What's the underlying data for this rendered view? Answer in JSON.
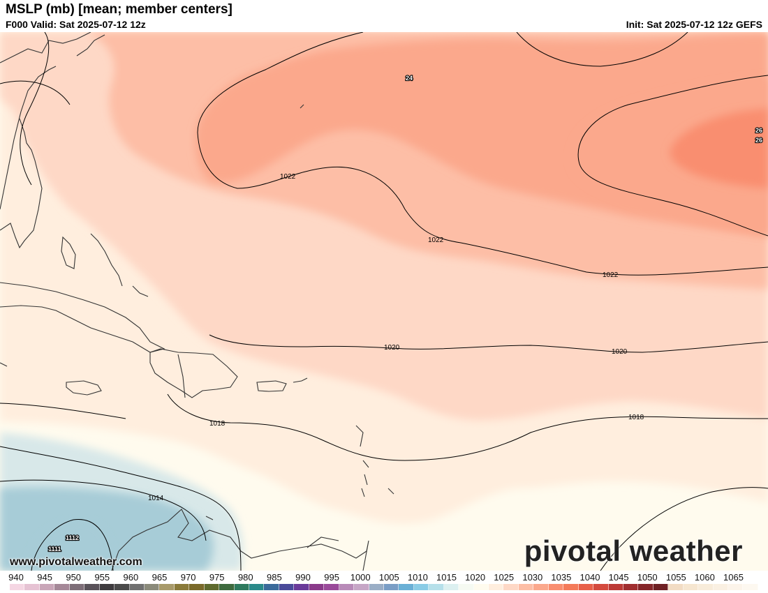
{
  "header": {
    "title": "MSLP (mb) [mean; member centers]",
    "valid": "F000 Valid: Sat 2025-07-12 12z",
    "init": "Init: Sat 2025-07-12 12z GEFS"
  },
  "map": {
    "contour_labels": [
      "1022",
      "1022",
      "1022",
      "1020",
      "1020",
      "1018",
      "1018",
      "1014"
    ],
    "center_labels": [
      "24",
      "26",
      "26",
      "1112",
      "1111"
    ],
    "colors": {
      "p1012": "#a7ccd7",
      "p1014": "#d8e8e9",
      "p1016": "#fffbee",
      "p1018": "#ffeede",
      "p1020": "#fed8c6",
      "p1022": "#fdbea6",
      "p1024": "#fba88c",
      "p1026": "#f98e70",
      "land_line": "#333333",
      "contour_line": "#000000"
    }
  },
  "watermark": {
    "website": "www.pivotalweather.com",
    "brand": "pivotal weather",
    "brand_icon": "gear-icon"
  },
  "scale": {
    "ticks": [
      "940",
      "945",
      "950",
      "955",
      "960",
      "965",
      "970",
      "975",
      "980",
      "985",
      "990",
      "995",
      "1000",
      "1005",
      "1010",
      "1015",
      "1020",
      "1025",
      "1030",
      "1035",
      "1040",
      "1045",
      "1050",
      "1055",
      "1060",
      "1065"
    ],
    "swatch_colors": [
      "#f5d6e3",
      "#e6c2d3",
      "#c9a6b8",
      "#a58898",
      "#7d6e78",
      "#595259",
      "#3e3b3e",
      "#4a4a4a",
      "#707070",
      "#8a8a7a",
      "#a89a6a",
      "#8a7a3a",
      "#7a6a2a",
      "#5e6a2e",
      "#3e6a3e",
      "#2e7a5e",
      "#2a8a8a",
      "#3a6a9a",
      "#4a4a9a",
      "#6a3a9a",
      "#8a3a8a",
      "#9a4a9a",
      "#b88ab8",
      "#c6a6c6",
      "#9aaec6",
      "#7a9ec6",
      "#6ab0d6",
      "#8acce6",
      "#b6e0ea",
      "#dcf0f0",
      "#f6faf2",
      "#fffbee",
      "#ffeede",
      "#fed8c6",
      "#fdbea6",
      "#fba88c",
      "#f98e70",
      "#f47a5a",
      "#e8604a",
      "#d44a3e",
      "#bc3a36",
      "#a02e30",
      "#86262a",
      "#6e2024",
      "#f2dcc4",
      "#f6e6d0",
      "#f8ecda",
      "#faf0e2",
      "#fcf4ea",
      "#fdf8f0"
    ]
  }
}
